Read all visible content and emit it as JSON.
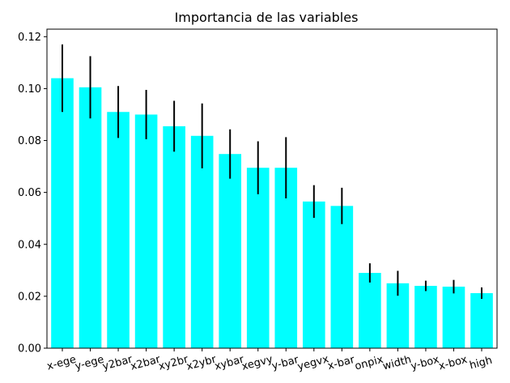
{
  "chart_data": {
    "type": "bar",
    "title": "Importancia de las variables",
    "xlabel": "",
    "ylabel": "",
    "categories": [
      "x-ege",
      "y-ege",
      "y2bar",
      "x2bar",
      "xy2br",
      "x2ybr",
      "xybar",
      "xegvy",
      "y-bar",
      "yegvx",
      "x-bar",
      "onpix",
      "width",
      "y-box",
      "x-box",
      "high"
    ],
    "values": [
      0.104,
      0.1005,
      0.091,
      0.09,
      0.0855,
      0.0818,
      0.0748,
      0.0695,
      0.0695,
      0.0565,
      0.0548,
      0.029,
      0.025,
      0.024,
      0.0237,
      0.0212
    ],
    "errors": [
      0.013,
      0.012,
      0.01,
      0.0095,
      0.0098,
      0.0125,
      0.0095,
      0.0102,
      0.0118,
      0.0063,
      0.007,
      0.0037,
      0.0048,
      0.002,
      0.0026,
      0.0022
    ],
    "ylim": [
      0,
      0.1229
    ],
    "yticks": [
      "0.00",
      "0.02",
      "0.04",
      "0.06",
      "0.08",
      "0.10",
      "0.12"
    ],
    "bar_color": "#00ffff",
    "error_color": "#000000",
    "grid": false,
    "x_tick_rotation": "slight"
  }
}
